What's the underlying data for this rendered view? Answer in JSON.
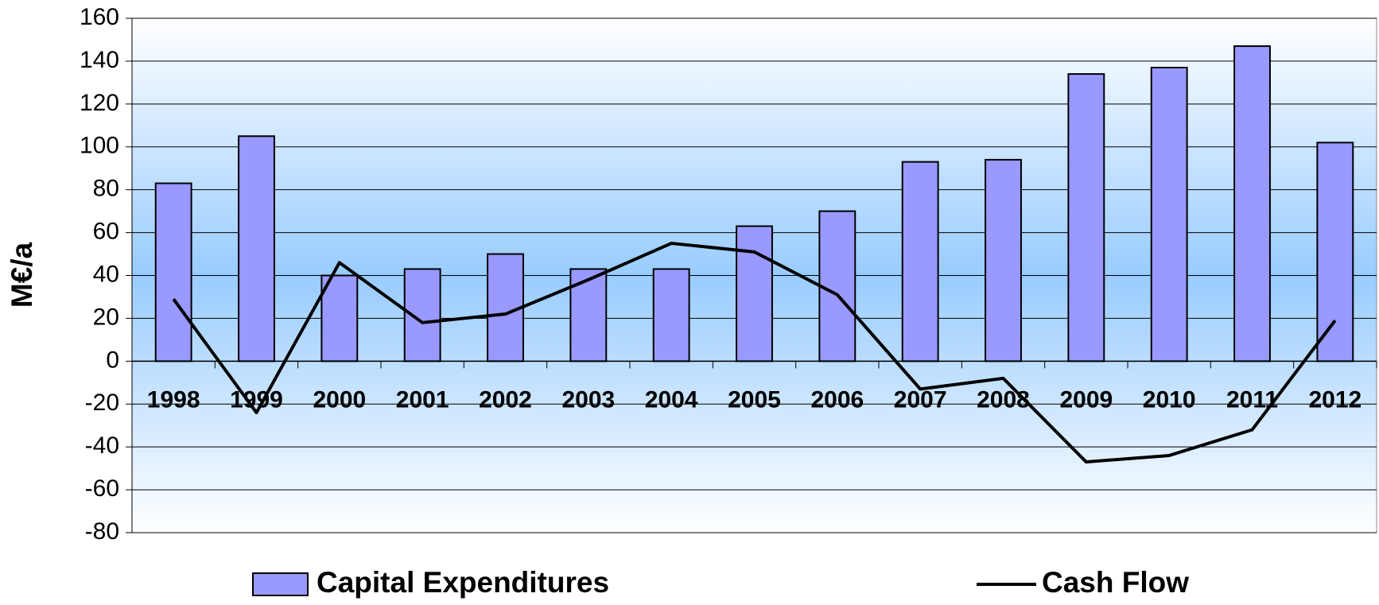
{
  "chart_data": {
    "type": "bar-line",
    "y_label": "M€/a",
    "categories": [
      "1998",
      "1999",
      "2000",
      "2001",
      "2002",
      "2003",
      "2004",
      "2005",
      "2006",
      "2007",
      "2008",
      "2009",
      "2010",
      "2011",
      "2012"
    ],
    "series": [
      {
        "name": "Capital Expenditures",
        "type": "bar",
        "color": "#9999ff",
        "values": [
          83,
          105,
          40,
          43,
          50,
          43,
          43,
          63,
          70,
          93,
          94,
          134,
          137,
          147,
          102
        ]
      },
      {
        "name": "Cash Flow",
        "type": "line",
        "color": "#000000",
        "values": [
          29,
          -24,
          46,
          18,
          22,
          38,
          55,
          51,
          31,
          -13,
          -8,
          -47,
          -44,
          -32,
          19
        ]
      }
    ],
    "ylim": [
      -80,
      160
    ],
    "yticks": [
      -80,
      -60,
      -40,
      -20,
      0,
      20,
      40,
      60,
      80,
      100,
      120,
      140,
      160
    ],
    "grid": true,
    "legend": "bottom"
  }
}
